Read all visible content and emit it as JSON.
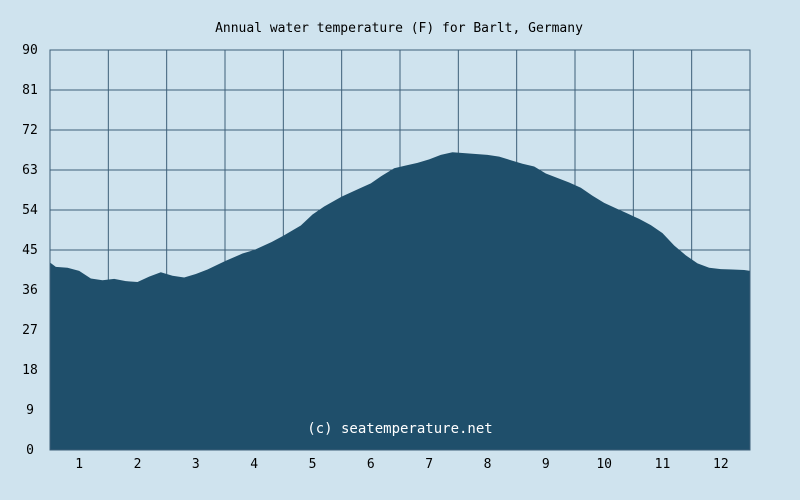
{
  "chart_data": {
    "type": "area",
    "title": "Annual water temperature (F) for Barlt, Germany",
    "xlabel": "",
    "ylabel": "",
    "ylim": [
      0,
      90
    ],
    "y_ticks": [
      0,
      9,
      18,
      27,
      36,
      45,
      54,
      63,
      72,
      81,
      90
    ],
    "x_ticks": [
      "1",
      "2",
      "3",
      "4",
      "5",
      "6",
      "7",
      "8",
      "9",
      "10",
      "11",
      "12"
    ],
    "xlim": [
      0.5,
      12.5
    ],
    "grid": true,
    "credit": "(c) seatemperature.net",
    "series": [
      {
        "x": [
          0.5,
          0.6,
          0.8,
          1.0,
          1.2,
          1.4,
          1.6,
          1.8,
          2.0,
          2.2,
          2.4,
          2.6,
          2.8,
          3.0,
          3.2,
          3.5,
          3.8,
          4.0,
          4.3,
          4.5,
          4.8,
          5.0,
          5.2,
          5.5,
          5.8,
          6.0,
          6.2,
          6.4,
          6.6,
          6.8,
          7.0,
          7.2,
          7.4,
          7.6,
          7.8,
          8.0,
          8.2,
          8.4,
          8.6,
          8.8,
          9.0,
          9.2,
          9.4,
          9.6,
          9.8,
          10.0,
          10.2,
          10.4,
          10.6,
          10.8,
          11.0,
          11.2,
          11.4,
          11.6,
          11.8,
          12.0,
          12.2,
          12.4,
          12.5
        ],
        "values": [
          42.2,
          41.2,
          41.0,
          40.3,
          38.6,
          38.2,
          38.5,
          38.0,
          37.8,
          39.0,
          40.0,
          39.2,
          38.8,
          39.6,
          40.6,
          42.5,
          44.2,
          45.0,
          46.8,
          48.2,
          50.5,
          53.0,
          54.8,
          57.0,
          58.8,
          60.0,
          61.8,
          63.4,
          64.0,
          64.6,
          65.4,
          66.4,
          67.0,
          66.8,
          66.6,
          66.4,
          66.0,
          65.2,
          64.4,
          63.8,
          62.2,
          61.2,
          60.2,
          59.0,
          57.2,
          55.6,
          54.4,
          53.2,
          52.0,
          50.6,
          48.8,
          46.0,
          43.8,
          42.0,
          41.0,
          40.7,
          40.6,
          40.5,
          40.3
        ]
      }
    ]
  }
}
